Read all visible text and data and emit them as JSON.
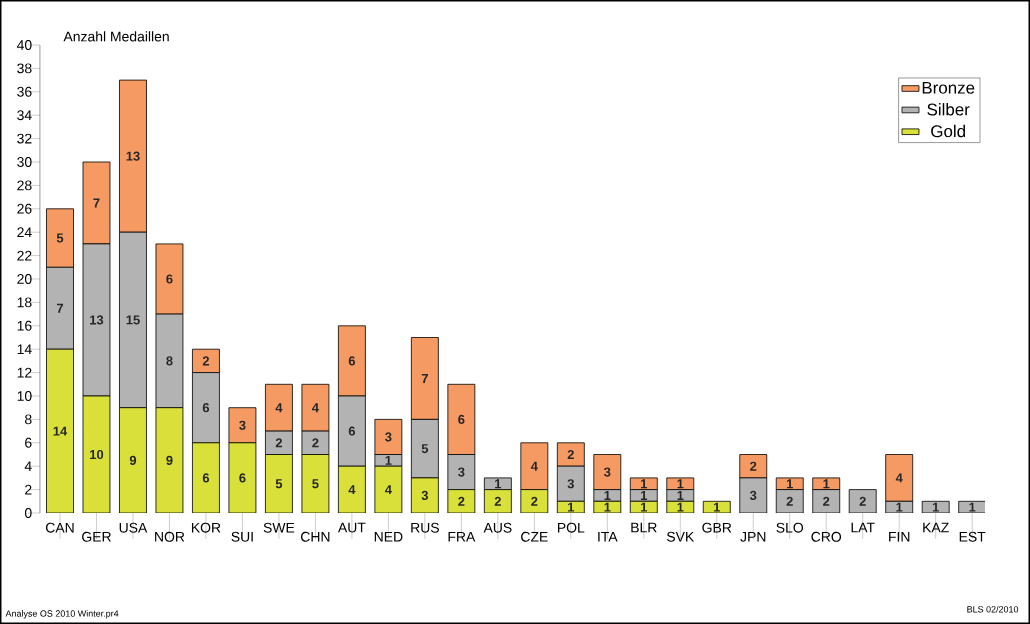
{
  "chart_data": {
    "type": "bar",
    "stacked": true,
    "ylabel": "Anzahl Medaillen",
    "categories": [
      "CAN",
      "GER",
      "USA",
      "NOR",
      "KOR",
      "SUI",
      "SWE",
      "CHN",
      "AUT",
      "NED",
      "RUS",
      "FRA",
      "AUS",
      "CZE",
      "POL",
      "ITA",
      "BLR",
      "SVK",
      "GBR",
      "JPN",
      "SLO",
      "CRO",
      "LAT",
      "FIN",
      "KAZ",
      "EST"
    ],
    "series": [
      {
        "name": "Gold",
        "color": "#d9e03a",
        "values": [
          14,
          10,
          9,
          9,
          6,
          6,
          5,
          5,
          4,
          4,
          3,
          2,
          2,
          2,
          1,
          1,
          1,
          1,
          1,
          0,
          0,
          0,
          0,
          0,
          0,
          0
        ],
        "value_labels": [
          "14",
          "10",
          "9",
          "9",
          "6",
          "6",
          "5",
          "5",
          "4",
          "4",
          "3",
          "2",
          "2",
          "2",
          "1",
          "1",
          "1",
          "1",
          "1",
          null,
          null,
          null,
          null,
          null,
          null,
          null
        ]
      },
      {
        "name": "Silber",
        "color": "#b3b3b3",
        "values": [
          7,
          13,
          15,
          8,
          6,
          0,
          2,
          2,
          6,
          1,
          5,
          3,
          1,
          0,
          3,
          1,
          1,
          1,
          0,
          3,
          2,
          2,
          2,
          1,
          1,
          1
        ],
        "value_labels": [
          "7",
          "13",
          "15",
          "8",
          "6",
          null,
          "2",
          "2",
          "6",
          "1",
          "5",
          "3",
          "1",
          null,
          "3",
          "1",
          "1",
          "1",
          null,
          "3",
          "2",
          "2",
          "2",
          "1",
          "1",
          "1"
        ]
      },
      {
        "name": "Bronze",
        "color": "#f59a62",
        "values": [
          5,
          7,
          13,
          6,
          2,
          3,
          4,
          4,
          6,
          3,
          7,
          6,
          0,
          4,
          2,
          3,
          1,
          1,
          0,
          2,
          1,
          1,
          0,
          4,
          0,
          0
        ],
        "value_labels": [
          "5",
          "7",
          "13",
          "6",
          "2",
          "3",
          "4",
          "4",
          "6",
          "3",
          "7",
          "6",
          null,
          "4",
          "2",
          "3",
          "1",
          "1",
          null,
          "2",
          "1",
          "1",
          null,
          "4",
          null,
          null
        ]
      }
    ],
    "ylim": [
      0,
      40
    ],
    "yticks": [
      0,
      2,
      4,
      6,
      8,
      10,
      12,
      14,
      16,
      18,
      20,
      22,
      24,
      26,
      28,
      30,
      32,
      34,
      36,
      38,
      40
    ],
    "legend": "top right",
    "annotations": [
      "Analyse OS 2010 Winter.pr4",
      "BLS 02/2010"
    ]
  }
}
